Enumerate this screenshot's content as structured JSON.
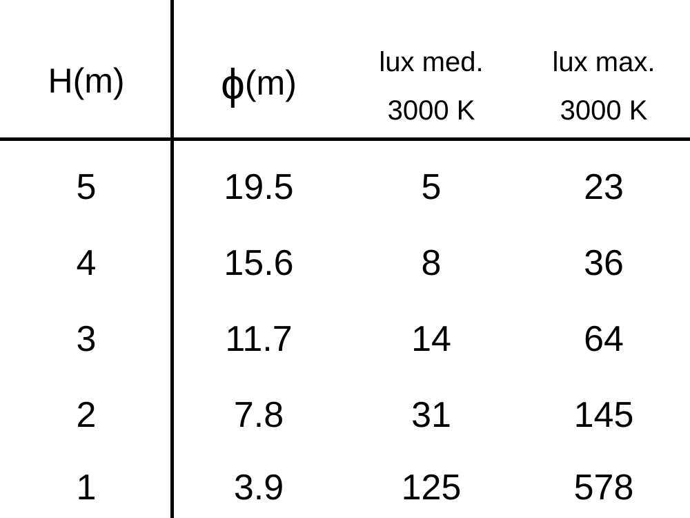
{
  "header": {
    "h": "H(m)",
    "phi_symbol": "ϕ",
    "phi_unit": "(m)",
    "lux_med": [
      "lux med.",
      "3000 K"
    ],
    "lux_max": [
      "lux max.",
      "3000 K"
    ]
  },
  "rows": [
    [
      "5",
      "19.5",
      "5",
      "23"
    ],
    [
      "4",
      "15.6",
      "8",
      "36"
    ],
    [
      "3",
      "11.7",
      "14",
      "64"
    ],
    [
      "2",
      "7.8",
      "31",
      "145"
    ],
    [
      "1",
      "3.9",
      "125",
      "578"
    ]
  ]
}
